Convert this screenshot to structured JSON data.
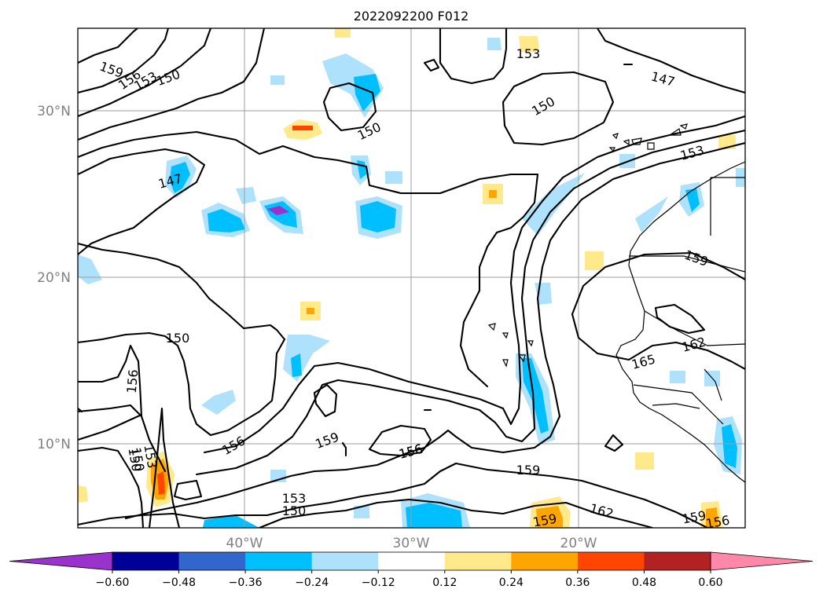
{
  "title": "2022092200 F012",
  "map": {
    "lat_labels": [
      "30°N",
      "20°N",
      "10°N"
    ],
    "lon_labels": [
      "40°W",
      "30°W",
      "20°W"
    ],
    "contour_labels": [
      "159",
      "156",
      "153",
      "150",
      "153",
      "150",
      "147",
      "150",
      "150",
      "147",
      "153",
      "159",
      "150",
      "156",
      "162",
      "165",
      "150",
      "153",
      "156",
      "156",
      "159",
      "156",
      "159",
      "153",
      "150",
      "162",
      "159",
      "159",
      "156"
    ]
  },
  "colorbar": {
    "ticks": [
      "−0.60",
      "−0.48",
      "−0.36",
      "−0.24",
      "−0.12",
      "0.12",
      "0.24",
      "0.36",
      "0.48",
      "0.60"
    ],
    "colors": [
      "#9933cc",
      "#000099",
      "#3366cc",
      "#00bfff",
      "#aee1fb",
      "#ffffff",
      "#ffe98a",
      "#ffa500",
      "#ff4500",
      "#b22222",
      "#ff88aa"
    ],
    "extend": "both"
  }
}
